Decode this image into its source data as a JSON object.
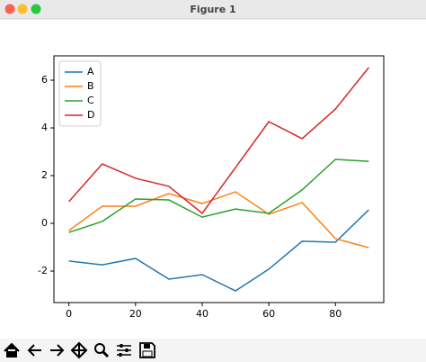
{
  "window": {
    "title": "Figure 1"
  },
  "chart_data": {
    "type": "line",
    "x": [
      0,
      10,
      20,
      30,
      40,
      50,
      60,
      70,
      80,
      90
    ],
    "series": [
      {
        "name": "A",
        "color": "#1f77b4",
        "values": [
          -1.58,
          -1.74,
          -1.47,
          -2.34,
          -2.15,
          -2.83,
          -1.92,
          -0.75,
          -0.79,
          0.57
        ]
      },
      {
        "name": "B",
        "color": "#ff7f0e",
        "values": [
          -0.3,
          0.72,
          0.72,
          1.25,
          0.83,
          1.32,
          0.38,
          0.87,
          -0.64,
          -1.02
        ]
      },
      {
        "name": "C",
        "color": "#2ca02c",
        "values": [
          -0.38,
          0.08,
          1.02,
          0.98,
          0.26,
          0.6,
          0.42,
          1.4,
          2.68,
          2.6
        ]
      },
      {
        "name": "D",
        "color": "#d62728",
        "values": [
          0.91,
          2.49,
          1.89,
          1.55,
          0.42,
          2.34,
          4.26,
          3.55,
          4.79,
          6.53
        ]
      }
    ],
    "xlim": [
      -4.5,
      94.5
    ],
    "xticks": [
      0,
      20,
      40,
      60,
      80
    ],
    "ylim": [
      -3.32,
      7.02
    ],
    "yticks": [
      -2,
      0,
      2,
      4,
      6
    ],
    "legend": "upper left"
  }
}
